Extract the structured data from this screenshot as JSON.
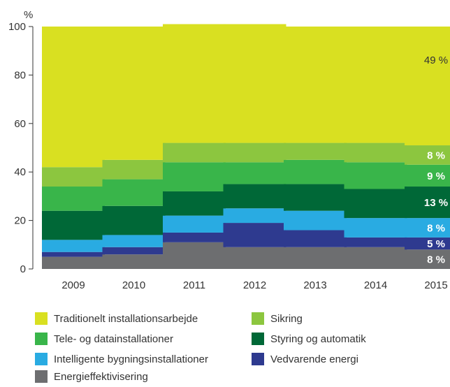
{
  "chart_data": {
    "type": "bar",
    "stacked": true,
    "unit_label": "%",
    "categories": [
      "2009",
      "2010",
      "2011",
      "2012",
      "2013",
      "2014",
      "2015"
    ],
    "ylim": [
      0,
      100
    ],
    "yticks": [
      0,
      20,
      40,
      60,
      80,
      100
    ],
    "grid": false,
    "legend_position": "bottom",
    "series": [
      {
        "name": "Energieffektivisering",
        "color": "#6d6e70",
        "values": [
          5,
          6,
          11,
          9,
          9,
          9,
          8
        ]
      },
      {
        "name": "Vedvarende energi",
        "color": "#2e3a8f",
        "values": [
          2,
          3,
          4,
          10,
          7,
          4,
          5
        ]
      },
      {
        "name": "Intelligente bygningsinstallationer",
        "color": "#29abe2",
        "values": [
          5,
          5,
          7,
          6,
          8,
          8,
          8
        ]
      },
      {
        "name": "Styring og automatik",
        "color": "#006837",
        "values": [
          12,
          12,
          10,
          10,
          11,
          12,
          13
        ]
      },
      {
        "name": "Tele- og datainstallationer",
        "color": "#39b54a",
        "values": [
          10,
          11,
          12,
          9,
          10,
          11,
          9
        ]
      },
      {
        "name": "Sikring",
        "color": "#8cc63f",
        "values": [
          8,
          8,
          8,
          8,
          7,
          8,
          8
        ]
      },
      {
        "name": "Traditionelt installationsarbejde",
        "color": "#d9e021",
        "values": [
          58,
          55,
          49,
          49,
          48,
          48,
          49
        ]
      }
    ],
    "data_labels": {
      "category": "2015",
      "labels": [
        "8 %",
        "5 %",
        "8 %",
        "13 %",
        "9 %",
        "8 %",
        "49 %"
      ]
    }
  },
  "legend": {
    "items": [
      {
        "label": "Traditionelt installationsarbejde",
        "color": "#d9e021"
      },
      {
        "label": "Sikring",
        "color": "#8cc63f"
      },
      {
        "label": "Tele- og datainstallationer",
        "color": "#39b54a"
      },
      {
        "label": "Styring og automatik",
        "color": "#006837"
      },
      {
        "label": "Intelligente bygningsinstallationer",
        "color": "#29abe2"
      },
      {
        "label": "Vedvarende energi",
        "color": "#2e3a8f"
      },
      {
        "label": "Energieffektivisering",
        "color": "#6d6e70"
      }
    ]
  }
}
